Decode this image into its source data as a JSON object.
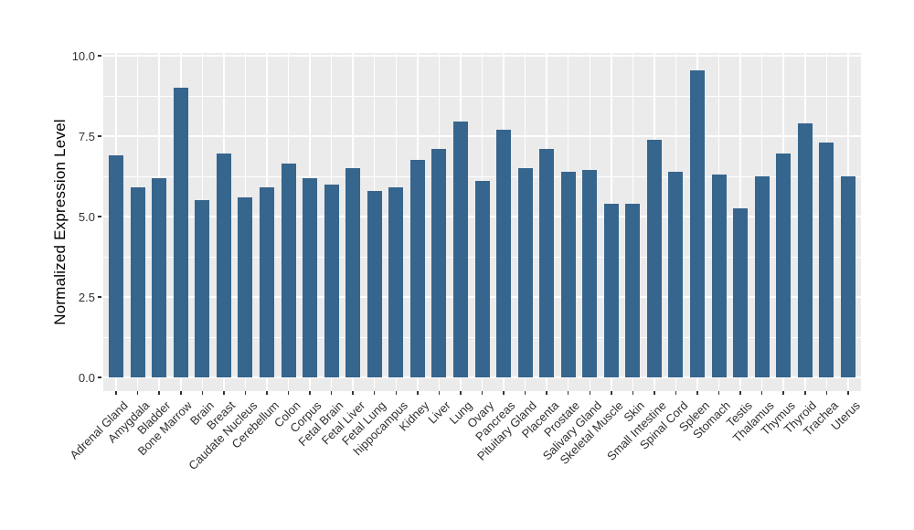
{
  "chart_data": {
    "type": "bar",
    "title": "",
    "xlabel": "",
    "ylabel": "Normalized Expression Level",
    "categories": [
      "Adrenal Gland",
      "Amygdala",
      "Bladder",
      "Bone Marrow",
      "Brain",
      "Breast",
      "Caudate Nucleus",
      "Cerebellum",
      "Colon",
      "Corpus",
      "Fetal Brain",
      "Fetal Liver",
      "Fetal Lung",
      "hippocampus",
      "Kidney",
      "Liver",
      "Lung",
      "Ovary",
      "Pancreas",
      "Pituitary Gland",
      "Placenta",
      "Prostate",
      "Salivary Gland",
      "Skeletal Muscle",
      "Skin",
      "Small Intestine",
      "Spinal Cord",
      "Spleen",
      "Stomach",
      "Testis",
      "Thalamus",
      "Thymus",
      "Thyroid",
      "Trachea",
      "Uterus"
    ],
    "values": [
      6.9,
      5.9,
      6.2,
      9.0,
      5.5,
      6.95,
      5.6,
      5.9,
      6.65,
      6.2,
      6.0,
      6.5,
      5.8,
      5.9,
      6.75,
      7.1,
      7.95,
      6.1,
      7.7,
      6.5,
      7.1,
      6.4,
      6.45,
      5.4,
      5.4,
      7.4,
      6.4,
      9.55,
      6.3,
      5.25,
      6.25,
      6.95,
      7.9,
      7.3,
      6.25
    ],
    "ylim": [
      0,
      10
    ],
    "ytick_values": [
      0,
      2.5,
      5,
      7.5,
      10
    ],
    "ytick_labels": [
      "0.0",
      "2.5",
      "5.0",
      "7.5",
      "10.0"
    ],
    "minor_gridline_values": [
      1.25,
      3.75,
      6.25,
      8.75
    ],
    "grid": "major and minor, white on gray panel",
    "legend": "none",
    "colors": {
      "bar": "#36658d",
      "panel_background": "#ebebeb",
      "gridline": "#ffffff",
      "tick_text": "#303030",
      "axis_title_text": "#000000",
      "tick_mark": "#333333",
      "figure_background": "#ffffff"
    }
  }
}
